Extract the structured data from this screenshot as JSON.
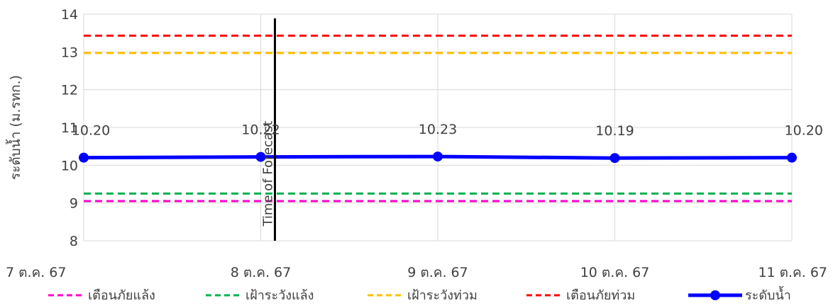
{
  "chart_data": {
    "type": "line",
    "title": "",
    "xlabel": "",
    "ylabel": "ระดับน้ำ (ม.รทก.)",
    "categories": [
      "7 ต.ค. 67",
      "8 ต.ค. 67",
      "9 ต.ค. 67",
      "10 ต.ค. 67",
      "11 ต.ค. 67"
    ],
    "y_ticks": [
      "8",
      "9",
      "10",
      "11",
      "12",
      "13",
      "14"
    ],
    "ylim": [
      8,
      14
    ],
    "grid": true,
    "legend_position": "bottom",
    "series": [
      {
        "name": "เตือนภัยแล้ง",
        "values": [
          9.05,
          9.05,
          9.05,
          9.05,
          9.05
        ],
        "color": "#ff00cc",
        "style": "dashed"
      },
      {
        "name": "เฝ้าระวังแล้ง",
        "values": [
          9.25,
          9.25,
          9.25,
          9.25,
          9.25
        ],
        "color": "#00b050",
        "style": "dashed"
      },
      {
        "name": "เฝ้าระวังท่วม",
        "values": [
          12.97,
          12.97,
          12.97,
          12.97,
          12.97
        ],
        "color": "#ffc000",
        "style": "dashed"
      },
      {
        "name": "เตือนภัยท่วม",
        "values": [
          13.43,
          13.43,
          13.43,
          13.43,
          13.43
        ],
        "color": "#ff0000",
        "style": "dashed"
      },
      {
        "name": "ระดับน้ำ",
        "values": [
          10.2,
          10.22,
          10.23,
          10.19,
          10.2
        ],
        "color": "#0000ff",
        "style": "solid-marker",
        "labels": [
          "10.20",
          "10.22",
          "10.23",
          "10.19",
          "10.20"
        ]
      }
    ],
    "annotations": [
      {
        "text": "Time of Forecast",
        "x_category_index": 1.08,
        "type": "vertical-line",
        "color": "#000000"
      }
    ]
  }
}
